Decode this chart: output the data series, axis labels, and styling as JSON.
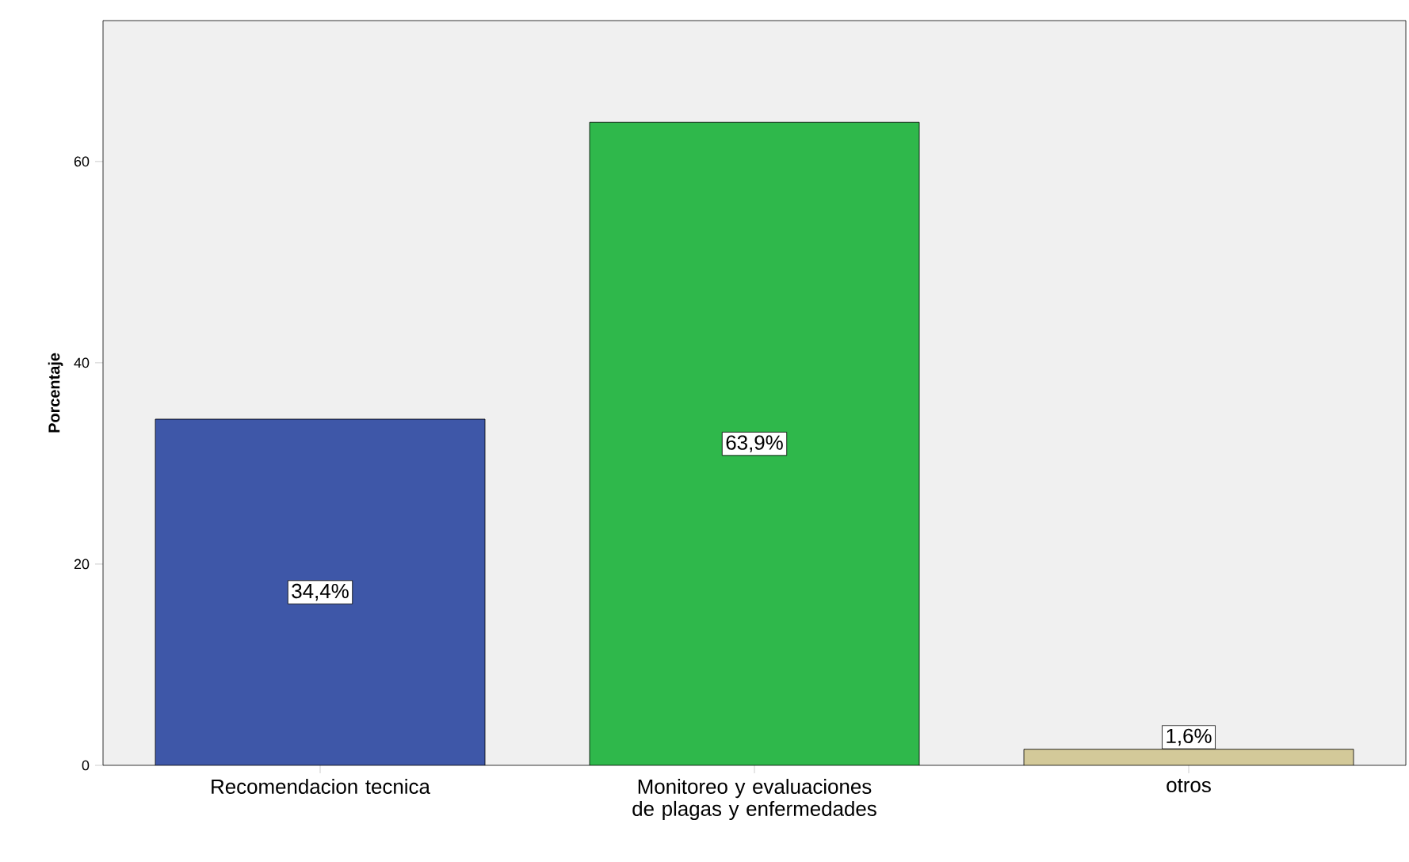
{
  "chart_data": {
    "type": "bar",
    "ylabel": "Porcentaje",
    "categories": [
      "Recomendacion tecnica",
      "Monitoreo y evaluaciones de plagas y enfermedades",
      "otros"
    ],
    "values": [
      34.4,
      63.9,
      1.6
    ],
    "colors": [
      "#3e57a8",
      "#2fb84b",
      "#d3c999"
    ],
    "value_labels": [
      "34,4%",
      "63,9%",
      "1,6%"
    ],
    "ylim": [
      0,
      74
    ],
    "yticks": [
      0,
      20,
      40,
      60
    ]
  }
}
